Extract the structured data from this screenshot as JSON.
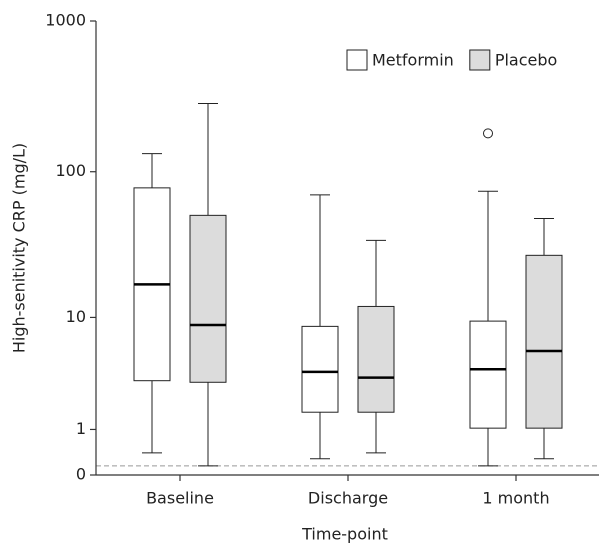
{
  "chart_data": {
    "type": "box",
    "x_label": "Time-point",
    "y_label": "High-senitivity CRP (mg/L)",
    "y_scale": "log1p",
    "ylim": [
      0,
      1000
    ],
    "yticks": [
      0,
      1,
      10,
      100,
      1000
    ],
    "categories": [
      "Baseline",
      "Discharge",
      "1 month"
    ],
    "reference_line": 0.15,
    "legend_position": "upper right",
    "series": [
      {
        "name": "Metformin",
        "color": "#ffffff",
        "boxes": [
          {
            "min": 0.4,
            "q1": 3.2,
            "median": 17.2,
            "q3": 78,
            "max": 132,
            "outliers": []
          },
          {
            "min": 0.28,
            "q1": 1.6,
            "median": 3.8,
            "q3": 8.6,
            "max": 70,
            "outliers": []
          },
          {
            "min": 0.15,
            "q1": 1.04,
            "median": 4.0,
            "q3": 9.4,
            "max": 74,
            "outliers": [
              180
            ]
          }
        ]
      },
      {
        "name": "Placebo",
        "color": "#dcdcdc",
        "boxes": [
          {
            "min": 0.15,
            "q1": 3.1,
            "median": 8.8,
            "q3": 51,
            "max": 284,
            "outliers": []
          },
          {
            "min": 0.4,
            "q1": 1.6,
            "median": 3.4,
            "q3": 12,
            "max": 34.5,
            "outliers": []
          },
          {
            "min": 0.28,
            "q1": 1.04,
            "median": 5.6,
            "q3": 27.3,
            "max": 48.6,
            "outliers": []
          }
        ]
      }
    ]
  }
}
